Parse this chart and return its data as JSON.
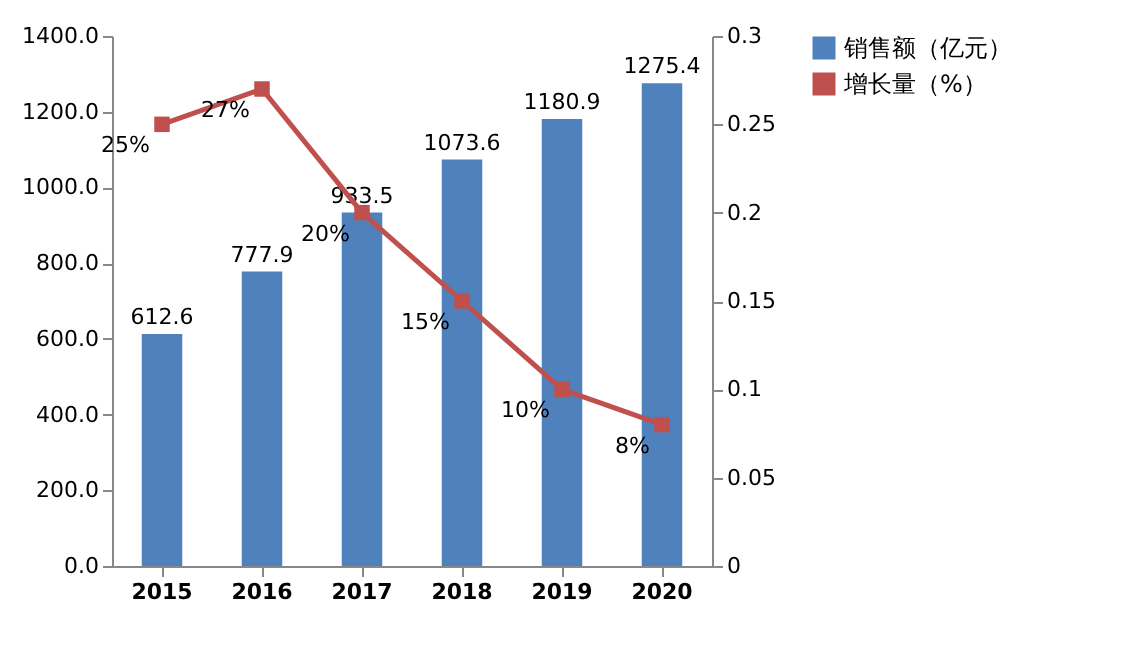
{
  "chart_data": {
    "type": "bar",
    "categories": [
      "2015",
      "2016",
      "2017",
      "2018",
      "2019",
      "2020"
    ],
    "series": [
      {
        "name": "销售额（亿元）",
        "color": "#4f81bd",
        "values": [
          612.6,
          777.9,
          933.5,
          1073.6,
          1180.9,
          1275.4
        ],
        "value_labels": [
          "612.6",
          "777.9",
          "933.5",
          "1073.6",
          "1180.9",
          "1275.4"
        ]
      },
      {
        "name": "增长量（%）",
        "type": "line",
        "axis": "y2",
        "color": "#c0504d",
        "marker": "square",
        "values": [
          0.25,
          0.27,
          0.2,
          0.15,
          0.1,
          0.08
        ],
        "value_labels": [
          "25%",
          "27%",
          "20%",
          "15%",
          "10%",
          "8%"
        ]
      }
    ],
    "ylim": [
      0,
      1400
    ],
    "yticks": [
      {
        "value": 0,
        "label": "0.0"
      },
      {
        "value": 200,
        "label": "200.0"
      },
      {
        "value": 400,
        "label": "400.0"
      },
      {
        "value": 600,
        "label": "600.0"
      },
      {
        "value": 800,
        "label": "800.0"
      },
      {
        "value": 1000,
        "label": "1000.0"
      },
      {
        "value": 1200,
        "label": "1200.0"
      },
      {
        "value": 1400,
        "label": "1400.0"
      }
    ],
    "y2lim": [
      0,
      0.3
    ],
    "y2ticks": [
      0,
      0.05,
      0.1,
      0.15,
      0.2,
      0.25,
      0.3
    ],
    "legend": "right",
    "grid": false
  }
}
